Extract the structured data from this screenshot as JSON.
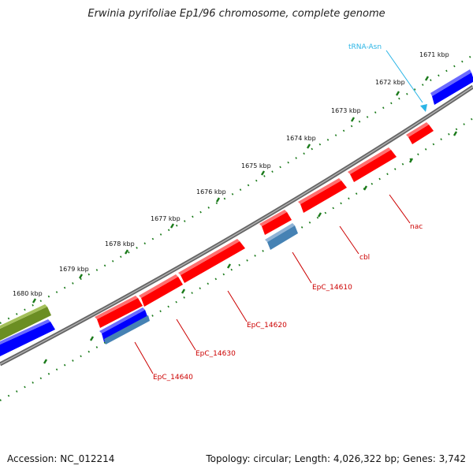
{
  "title": "Erwinia pyrifoliae Ep1/96 chromosome, complete genome",
  "footer": {
    "accession": "Accession: NC_012214",
    "topology": "Topology: circular; Length: 4,026,322 bp; Genes: 3,742"
  },
  "scale_labels": [
    "1671 kbp",
    "1672 kbp",
    "1673 kbp",
    "1674 kbp",
    "1675 kbp",
    "1676 kbp",
    "1677 kbp",
    "1678 kbp",
    "1679 kbp",
    "1680 kbp"
  ],
  "features": [
    {
      "label": "EpC_14610",
      "kind": "CDS",
      "strand": "+",
      "color": "#ff0000"
    },
    {
      "label": "EpC_14610",
      "kind": "CDS",
      "strand": "-",
      "color": "#4682b4"
    },
    {
      "label": "cbl",
      "kind": "CDS",
      "strand": "+",
      "color": "#ff0000"
    },
    {
      "label": "nac",
      "kind": "CDS",
      "strand": "+",
      "color": "#ff0000"
    },
    {
      "label": "EpC_14620",
      "kind": "CDS",
      "strand": "+",
      "color": "#ff0000"
    },
    {
      "label": "EpC_14630",
      "kind": "CDS",
      "strand": "+",
      "color": "#ff0000"
    },
    {
      "label": "EpC_14640",
      "kind": "CDS",
      "strand": "+",
      "color": "#ff0000"
    },
    {
      "label": "tRNA-Asn",
      "kind": "tRNA",
      "color": "#2bb5e6"
    }
  ],
  "colors": {
    "backbone": "#808080",
    "ticks": "#1a7a1a",
    "cds": "#ff0000",
    "gene_blue": "#0000ff",
    "gene_steel": "#4682b4",
    "gene_olive": "#6b8e23",
    "trna": "#2bb5e6"
  }
}
